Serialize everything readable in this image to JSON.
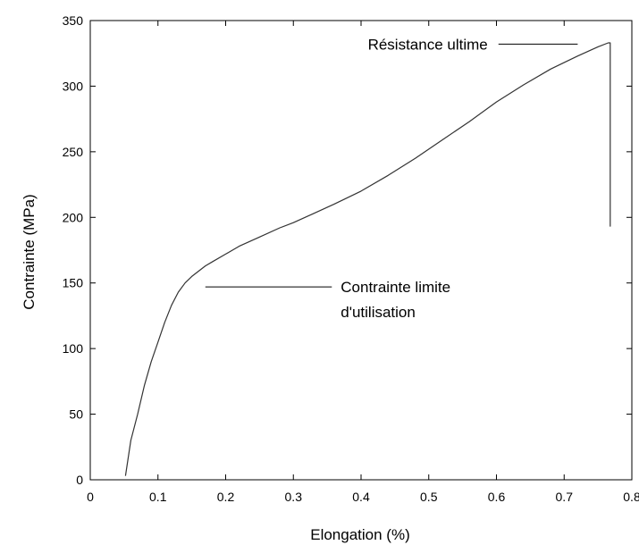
{
  "chart_data": {
    "type": "line",
    "title": "",
    "xlabel": "Elongation (%)",
    "ylabel": "Contrainte (MPa)",
    "xlim": [
      0,
      0.8
    ],
    "ylim": [
      0,
      350
    ],
    "x_ticks": [
      "0",
      "0.1",
      "0.2",
      "0.3",
      "0.4",
      "0.5",
      "0.6",
      "0.7",
      "0.8"
    ],
    "y_ticks": [
      "0",
      "50",
      "100",
      "150",
      "200",
      "250",
      "300",
      "350"
    ],
    "grid": false,
    "legend": false,
    "series": [
      {
        "x": [
          0.052,
          0.06,
          0.07,
          0.08,
          0.09,
          0.1,
          0.11,
          0.12,
          0.13,
          0.14,
          0.15,
          0.16,
          0.17,
          0.18,
          0.2,
          0.22,
          0.25,
          0.28,
          0.3,
          0.33,
          0.36,
          0.4,
          0.44,
          0.48,
          0.52,
          0.56,
          0.6,
          0.64,
          0.68,
          0.72,
          0.75,
          0.765,
          0.768,
          0.768
        ],
        "y": [
          3,
          30,
          50,
          72,
          90,
          105,
          120,
          133,
          143,
          150,
          155,
          159,
          163,
          166,
          172,
          178,
          185,
          192,
          196,
          203,
          210,
          220,
          232,
          245,
          259,
          273,
          288,
          301,
          313,
          323,
          330,
          333,
          333,
          193
        ]
      }
    ],
    "annotations": [
      {
        "text": "Résistance ultime",
        "x": 0.41,
        "y": 332,
        "line_to": [
          0.72,
          332
        ]
      },
      {
        "text": "Contrainte limite",
        "x": 0.37,
        "y": 147,
        "line_to": [
          0.17,
          147
        ]
      },
      {
        "text": "d'utilisation",
        "x": 0.37,
        "y": 128
      }
    ]
  }
}
